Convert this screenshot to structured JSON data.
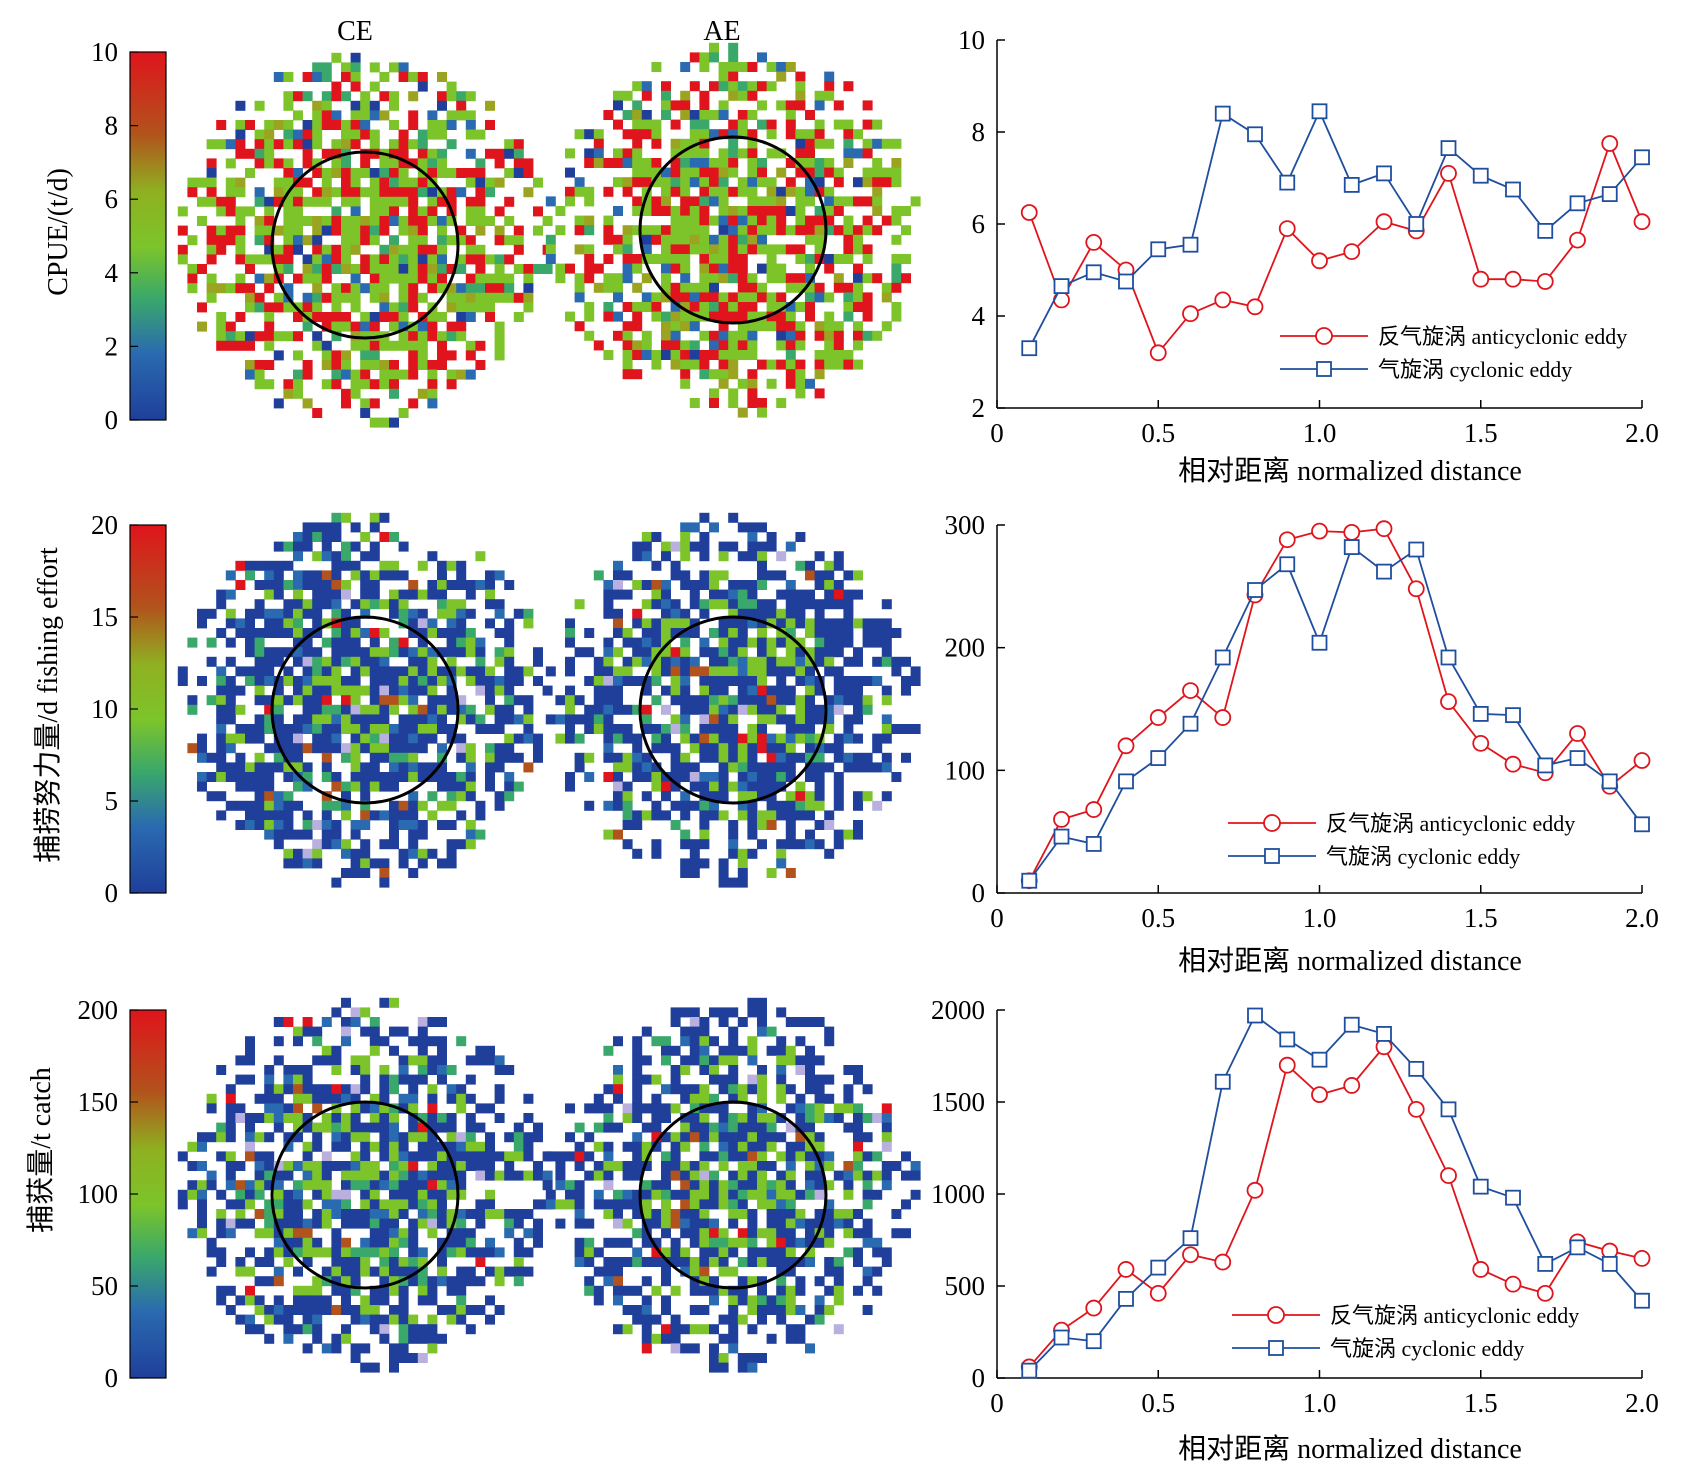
{
  "figure": {
    "column_titles": [
      "CE",
      "AE"
    ],
    "colors": {
      "anticyclonic": "#e0141c",
      "cyclonic": "#1f4e9e",
      "colormap": [
        "#1f3f9a",
        "#2a6ab0",
        "#3aa86a",
        "#7cc42a",
        "#9aa420",
        "#b2521c",
        "#e0141c"
      ]
    }
  },
  "chart_data": [
    {
      "type": "heatmap",
      "ylabel": "CPUE/(t/d)",
      "colorbar": {
        "range": [
          0,
          10
        ],
        "ticks": [
          "0",
          "2",
          "4",
          "6",
          "8",
          "10"
        ]
      },
      "panels": [
        {
          "name": "CE",
          "pattern": "mixed-green-red",
          "seed": 11,
          "circle": "normalized distance 1.0"
        },
        {
          "name": "AE",
          "pattern": "mixed-green-red",
          "seed": 29,
          "circle": "normalized distance 1.0"
        }
      ]
    },
    {
      "type": "line",
      "xlabel": "相对距离 normalized distance",
      "ylabel": "",
      "xlim": [
        0,
        2.0
      ],
      "ylim": [
        2,
        10
      ],
      "xticks": [
        "0",
        "0.5",
        "1.0",
        "1.5",
        "2.0"
      ],
      "yticks": [
        "2",
        "4",
        "6",
        "8",
        "10"
      ],
      "legend": "lower-right",
      "x": [
        0.1,
        0.2,
        0.3,
        0.4,
        0.5,
        0.6,
        0.7,
        0.8,
        0.9,
        1.0,
        1.1,
        1.2,
        1.3,
        1.4,
        1.5,
        1.6,
        1.7,
        1.8,
        1.9,
        2.0
      ],
      "series": [
        {
          "name": "反气旋涡 anticyclonic eddy",
          "marker": "circle",
          "color": "#e0141c",
          "values": [
            6.25,
            4.35,
            5.6,
            5.0,
            3.2,
            4.05,
            4.35,
            4.2,
            5.9,
            5.2,
            5.4,
            6.05,
            5.85,
            7.1,
            4.8,
            4.8,
            4.75,
            5.65,
            7.75,
            6.05
          ]
        },
        {
          "name": "气旋涡 cyclonic eddy",
          "marker": "square",
          "color": "#1f4e9e",
          "values": [
            3.3,
            4.65,
            4.95,
            4.75,
            5.45,
            5.55,
            8.4,
            7.95,
            6.9,
            8.45,
            6.85,
            7.1,
            6.0,
            7.65,
            7.05,
            6.75,
            5.85,
            6.45,
            6.65,
            7.45
          ]
        }
      ]
    },
    {
      "type": "heatmap",
      "ylabel": "捕捞努力量/d fishing effort",
      "colorbar": {
        "range": [
          0,
          20
        ],
        "ticks": [
          "0",
          "5",
          "10",
          "15",
          "20"
        ]
      },
      "panels": [
        {
          "name": "CE",
          "pattern": "mostly-blue",
          "seed": 47,
          "circle": "normalized distance 1.0"
        },
        {
          "name": "AE",
          "pattern": "mostly-blue",
          "seed": 83,
          "circle": "normalized distance 1.0"
        }
      ]
    },
    {
      "type": "line",
      "xlabel": "相对距离 normalized distance",
      "ylabel": "",
      "xlim": [
        0,
        2.0
      ],
      "ylim": [
        0,
        300
      ],
      "xticks": [
        "0",
        "0.5",
        "1.0",
        "1.5",
        "2.0"
      ],
      "yticks": [
        "0",
        "100",
        "200",
        "300"
      ],
      "legend": "lower-right",
      "x": [
        0.1,
        0.2,
        0.3,
        0.4,
        0.5,
        0.6,
        0.7,
        0.8,
        0.9,
        1.0,
        1.1,
        1.2,
        1.3,
        1.4,
        1.5,
        1.6,
        1.7,
        1.8,
        1.9,
        2.0
      ],
      "series": [
        {
          "name": "反气旋涡 anticyclonic eddy",
          "marker": "circle",
          "color": "#e0141c",
          "values": [
            10,
            60,
            68,
            120,
            143,
            165,
            143,
            243,
            288,
            295,
            294,
            297,
            248,
            156,
            122,
            105,
            98,
            130,
            87,
            108
          ]
        },
        {
          "name": "气旋涡 cyclonic eddy",
          "marker": "square",
          "color": "#1f4e9e",
          "values": [
            10,
            46,
            40,
            91,
            110,
            138,
            192,
            247,
            268,
            204,
            282,
            262,
            280,
            192,
            146,
            145,
            104,
            110,
            91,
            56
          ]
        }
      ]
    },
    {
      "type": "heatmap",
      "ylabel": "捕获量/t catch",
      "colorbar": {
        "range": [
          0,
          200
        ],
        "ticks": [
          "0",
          "50",
          "100",
          "150",
          "200"
        ]
      },
      "panels": [
        {
          "name": "CE",
          "pattern": "mostly-blue",
          "seed": 101,
          "circle": "normalized distance 1.0"
        },
        {
          "name": "AE",
          "pattern": "mostly-blue",
          "seed": 137,
          "circle": "normalized distance 1.0"
        }
      ]
    },
    {
      "type": "line",
      "xlabel": "相对距离 normalized distance",
      "ylabel": "",
      "xlim": [
        0,
        2.0
      ],
      "ylim": [
        0,
        2000
      ],
      "xticks": [
        "0",
        "0.5",
        "1.0",
        "1.5",
        "2.0"
      ],
      "yticks": [
        "0",
        "500",
        "1000",
        "1500",
        "2000"
      ],
      "legend": "lower-right",
      "x": [
        0.1,
        0.2,
        0.3,
        0.4,
        0.5,
        0.6,
        0.7,
        0.8,
        0.9,
        1.0,
        1.1,
        1.2,
        1.3,
        1.4,
        1.5,
        1.6,
        1.7,
        1.8,
        1.9,
        2.0
      ],
      "series": [
        {
          "name": "反气旋涡 anticyclonic eddy",
          "marker": "circle",
          "color": "#e0141c",
          "values": [
            60,
            260,
            380,
            590,
            460,
            670,
            630,
            1020,
            1700,
            1540,
            1590,
            1800,
            1460,
            1100,
            590,
            510,
            460,
            740,
            690,
            650
          ]
        },
        {
          "name": "气旋涡 cyclonic eddy",
          "marker": "square",
          "color": "#1f4e9e",
          "values": [
            40,
            220,
            200,
            430,
            600,
            760,
            1610,
            1970,
            1840,
            1730,
            1920,
            1870,
            1680,
            1460,
            1040,
            980,
            620,
            710,
            620,
            420
          ]
        }
      ]
    }
  ]
}
